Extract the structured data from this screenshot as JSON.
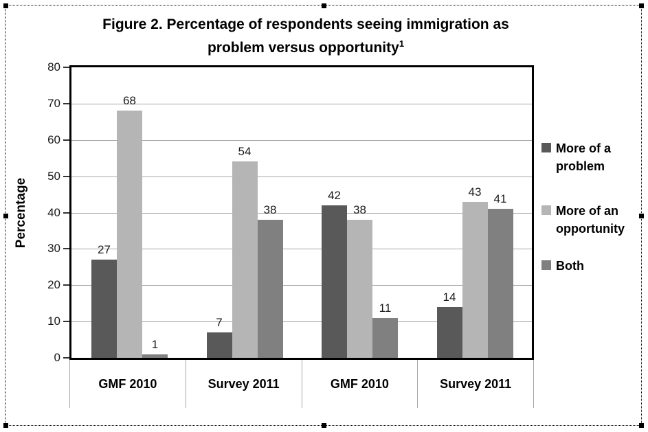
{
  "frame": {
    "type": "selected-picture",
    "border_color": "#000000"
  },
  "chart": {
    "title_line1": "Figure 2. Percentage of respondents seeing immigration as",
    "title_line2": "problem versus opportunity",
    "title_superscript": "1",
    "ylabel": "Percentage"
  },
  "chart_data": {
    "type": "bar",
    "title": "Figure 2. Percentage of respondents seeing immigration as problem versus opportunity¹",
    "xlabel": "",
    "ylabel": "Percentage",
    "ylim": [
      0,
      80
    ],
    "ytick_step": 10,
    "yticks": [
      0,
      10,
      20,
      30,
      40,
      50,
      60,
      70,
      80
    ],
    "grid": true,
    "gridline_color": "#a6a6a6",
    "legend_position": "right",
    "categories": [
      "GMF 2010",
      "Survey 2011",
      "GMF 2010",
      "Survey 2011"
    ],
    "series": [
      {
        "name": "More of a problem",
        "color": "#595959",
        "values": [
          27,
          7,
          42,
          14
        ]
      },
      {
        "name": "More of an opportunity",
        "color": "#b5b5b5",
        "values": [
          68,
          54,
          38,
          43
        ]
      },
      {
        "name": "Both",
        "color": "#808080",
        "values": [
          1,
          38,
          11,
          41
        ]
      }
    ],
    "bar_value_labels_shown": true
  },
  "legend": {
    "entries": [
      {
        "label": "More of a problem",
        "color": "#595959"
      },
      {
        "label": "More of an opportunity",
        "color": "#b5b5b5"
      },
      {
        "label": "Both",
        "color": "#808080"
      }
    ]
  }
}
